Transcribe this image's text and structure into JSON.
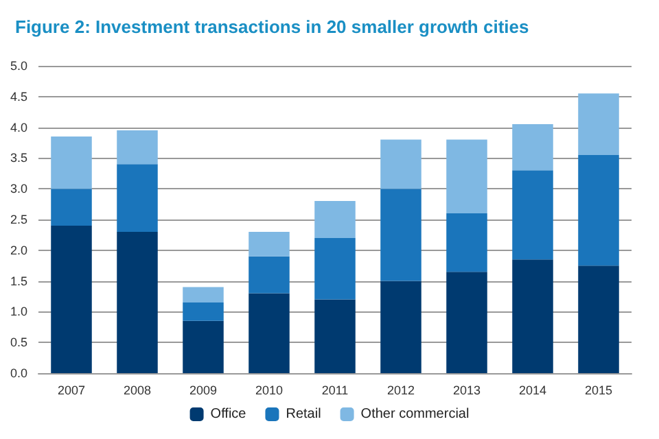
{
  "chart_data": {
    "type": "bar",
    "title": "Figure 2: Investment transactions in 20 smaller growth cities",
    "categories": [
      "2007",
      "2008",
      "2009",
      "2010",
      "2011",
      "2012",
      "2013",
      "2014",
      "2015"
    ],
    "series": [
      {
        "name": "Office",
        "color": "#003a70",
        "values": [
          2.4,
          2.3,
          0.85,
          1.3,
          1.2,
          1.5,
          1.65,
          1.85,
          1.75
        ]
      },
      {
        "name": "Retail",
        "color": "#1a75bb",
        "values": [
          0.6,
          1.1,
          0.3,
          0.6,
          1.0,
          1.5,
          0.95,
          1.45,
          1.8
        ]
      },
      {
        "name": "Other commercial",
        "color": "#7fb8e3",
        "values": [
          0.85,
          0.55,
          0.25,
          0.4,
          0.6,
          0.8,
          1.2,
          0.75,
          1.0
        ]
      }
    ],
    "stacked": true,
    "ylim": [
      0,
      5
    ],
    "yticks": [
      {
        "value": 0,
        "label": "0.0"
      },
      0.5,
      {
        "value": 1,
        "label": "1.0"
      },
      1.5,
      {
        "value": 2,
        "label": "2.0"
      },
      2.5,
      {
        "value": 3,
        "label": "3.0"
      },
      3.5,
      {
        "value": 4,
        "label": "4.0"
      },
      4.5,
      {
        "value": 5,
        "label": "5.0"
      }
    ],
    "grid": "y",
    "legend": "bottom"
  }
}
